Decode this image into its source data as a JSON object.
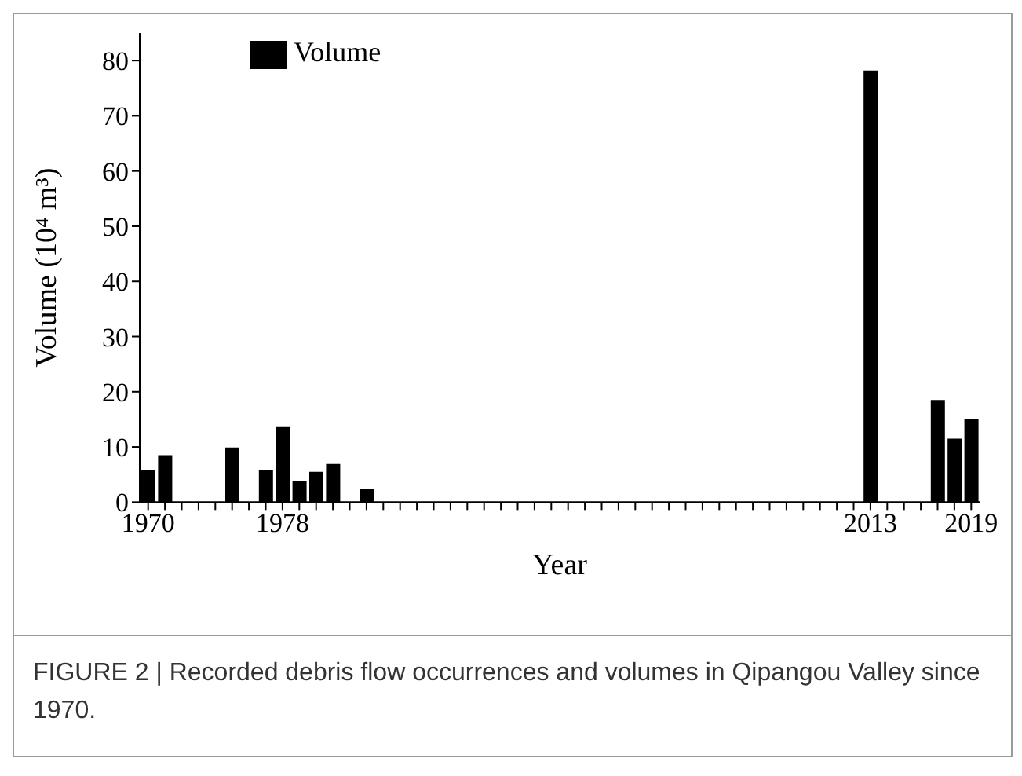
{
  "chart_data": {
    "type": "bar",
    "xlabel": "Year",
    "ylabel": "Volume (10⁴ m³)",
    "x": [
      1970,
      1971,
      1975,
      1977,
      1978,
      1979,
      1980,
      1981,
      1983,
      2013,
      2017,
      2018,
      2019
    ],
    "series": [
      {
        "name": "Volume",
        "color": "#000000",
        "values": [
          5.8,
          8.5,
          9.9,
          5.8,
          13.6,
          3.9,
          5.5,
          6.9,
          2.4,
          78.2,
          18.5,
          11.5,
          15.0
        ]
      }
    ],
    "xlim": [
      1969.5,
      2019.5
    ],
    "xticks": [
      1970,
      {
        "value": 1971,
        "label": null
      },
      {
        "value": 1972,
        "label": null
      },
      {
        "value": 1973,
        "label": null
      },
      {
        "value": 1974,
        "label": null
      },
      {
        "value": 1975,
        "label": null
      },
      {
        "value": 1976,
        "label": null
      },
      {
        "value": 1977,
        "label": null
      },
      1978,
      {
        "value": 1979,
        "label": null
      },
      {
        "value": 1980,
        "label": null
      },
      {
        "value": 1981,
        "label": null
      },
      {
        "value": 1982,
        "label": null
      },
      {
        "value": 1983,
        "label": null
      },
      {
        "value": 1984,
        "label": null
      },
      {
        "value": 1985,
        "label": null
      },
      {
        "value": 1986,
        "label": null
      },
      {
        "value": 1987,
        "label": null
      },
      {
        "value": 1988,
        "label": null
      },
      {
        "value": 1989,
        "label": null
      },
      {
        "value": 1990,
        "label": null
      },
      {
        "value": 1991,
        "label": null
      },
      {
        "value": 1992,
        "label": null
      },
      {
        "value": 1993,
        "label": null
      },
      {
        "value": 1994,
        "label": null
      },
      {
        "value": 1995,
        "label": null
      },
      {
        "value": 1996,
        "label": null
      },
      {
        "value": 1997,
        "label": null
      },
      {
        "value": 1998,
        "label": null
      },
      {
        "value": 1999,
        "label": null
      },
      {
        "value": 2000,
        "label": null
      },
      {
        "value": 2001,
        "label": null
      },
      {
        "value": 2002,
        "label": null
      },
      {
        "value": 2003,
        "label": null
      },
      {
        "value": 2004,
        "label": null
      },
      {
        "value": 2005,
        "label": null
      },
      {
        "value": 2006,
        "label": null
      },
      {
        "value": 2007,
        "label": null
      },
      {
        "value": 2008,
        "label": null
      },
      {
        "value": 2009,
        "label": null
      },
      {
        "value": 2010,
        "label": null
      },
      {
        "value": 2011,
        "label": null
      },
      {
        "value": 2012,
        "label": null
      },
      2013,
      {
        "value": 2014,
        "label": null
      },
      {
        "value": 2015,
        "label": null
      },
      {
        "value": 2016,
        "label": null
      },
      {
        "value": 2017,
        "label": null
      },
      {
        "value": 2018,
        "label": null
      },
      2019
    ],
    "ylim": [
      0,
      85
    ],
    "yticks": [
      0,
      10,
      20,
      30,
      40,
      50,
      60,
      70,
      80
    ],
    "grid": false,
    "legend": "top left",
    "annotations": [
      "FIGURE 2 | Recorded debris flow occurrences and volumes in Qipangou Valley since 1970."
    ]
  }
}
